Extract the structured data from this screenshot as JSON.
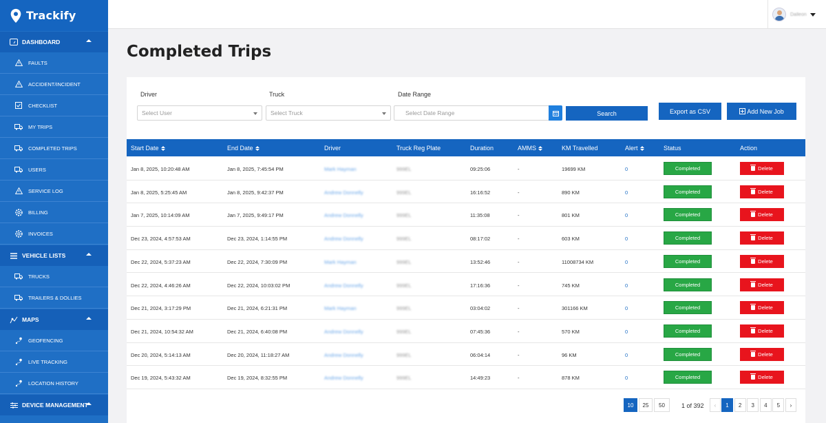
{
  "app": {
    "name": "Trackify"
  },
  "user": {
    "name": "Dalleon"
  },
  "page": {
    "title": "Completed Trips"
  },
  "sidebar": {
    "dashboard": {
      "label": "DASHBOARD",
      "items": [
        {
          "label": "FAULTS",
          "icon": "warning-icon"
        },
        {
          "label": "ACCIDENT/INCIDENT",
          "icon": "warning-icon"
        },
        {
          "label": "CHECKLIST",
          "icon": "checkbox-icon"
        },
        {
          "label": "MY TRIPS",
          "icon": "truck-icon"
        },
        {
          "label": "COMPLETED TRIPS",
          "icon": "truck-icon"
        },
        {
          "label": "USERS",
          "icon": "truck-icon"
        },
        {
          "label": "SERVICE LOG",
          "icon": "warning-icon"
        },
        {
          "label": "BILLING",
          "icon": "gear-icon"
        },
        {
          "label": "INVOICES",
          "icon": "gear-icon"
        }
      ]
    },
    "vehicle_lists": {
      "label": "VEHICLE LISTS",
      "items": [
        {
          "label": "TRUCKS",
          "icon": "truck-icon"
        },
        {
          "label": "TRAILERS & DOLLIES",
          "icon": "truck-icon"
        }
      ]
    },
    "maps": {
      "label": "MAPS",
      "items": [
        {
          "label": "GEOFENCING",
          "icon": "route-icon"
        },
        {
          "label": "LIVE TRACKING",
          "icon": "route-icon"
        },
        {
          "label": "LOCATION HISTORY",
          "icon": "route-icon"
        }
      ]
    },
    "device_management": {
      "label": "DEVICE MANAGEMENT"
    }
  },
  "filters": {
    "driver_label": "Driver",
    "driver_placeholder": "Select User",
    "truck_label": "Truck",
    "truck_placeholder": "Select Truck",
    "date_label": "Date Range",
    "date_placeholder": "Select Date Range",
    "search": "Search",
    "export": "Export as CSV",
    "add_job": "Add New Job"
  },
  "table": {
    "headers": [
      "Start Date",
      "End Date",
      "Driver",
      "Truck Reg Plate",
      "Duration",
      "AMMS",
      "KM Travelled",
      "Alert",
      "Status",
      "Action"
    ],
    "rows": [
      {
        "start": "Jan 8, 2025, 10:20:48 AM",
        "end": "Jan 8, 2025, 7:45:54 PM",
        "driver": "Mark Hayman",
        "plate": "999EL",
        "duration": "09:25:06",
        "amms": "-",
        "km": "19699 KM",
        "alert": "0",
        "status": "Completed",
        "action": "Delete"
      },
      {
        "start": "Jan 8, 2025, 5:25:45 AM",
        "end": "Jan 8, 2025, 9:42:37 PM",
        "driver": "Andrew Donnelly",
        "plate": "999EL",
        "duration": "16:16:52",
        "amms": "-",
        "km": "890 KM",
        "alert": "0",
        "status": "Completed",
        "action": "Delete"
      },
      {
        "start": "Jan 7, 2025, 10:14:09 AM",
        "end": "Jan 7, 2025, 9:49:17 PM",
        "driver": "Andrew Donnelly",
        "plate": "999EL",
        "duration": "11:35:08",
        "amms": "-",
        "km": "801 KM",
        "alert": "0",
        "status": "Completed",
        "action": "Delete"
      },
      {
        "start": "Dec 23, 2024, 4:57:53 AM",
        "end": "Dec 23, 2024, 1:14:55 PM",
        "driver": "Andrew Donnelly",
        "plate": "999EL",
        "duration": "08:17:02",
        "amms": "-",
        "km": "603 KM",
        "alert": "0",
        "status": "Completed",
        "action": "Delete"
      },
      {
        "start": "Dec 22, 2024, 5:37:23 AM",
        "end": "Dec 22, 2024, 7:30:09 PM",
        "driver": "Mark Hayman",
        "plate": "999EL",
        "duration": "13:52:46",
        "amms": "-",
        "km": "11008734 KM",
        "alert": "0",
        "status": "Completed",
        "action": "Delete"
      },
      {
        "start": "Dec 22, 2024, 4:46:26 AM",
        "end": "Dec 22, 2024, 10:03:02 PM",
        "driver": "Andrew Donnelly",
        "plate": "999EL",
        "duration": "17:16:36",
        "amms": "-",
        "km": "745 KM",
        "alert": "0",
        "status": "Completed",
        "action": "Delete"
      },
      {
        "start": "Dec 21, 2024, 3:17:29 PM",
        "end": "Dec 21, 2024, 6:21:31 PM",
        "driver": "Mark Hayman",
        "plate": "999EL",
        "duration": "03:04:02",
        "amms": "-",
        "km": "301166 KM",
        "alert": "0",
        "status": "Completed",
        "action": "Delete"
      },
      {
        "start": "Dec 21, 2024, 10:54:32 AM",
        "end": "Dec 21, 2024, 6:40:08 PM",
        "driver": "Andrew Donnelly",
        "plate": "999EL",
        "duration": "07:45:36",
        "amms": "-",
        "km": "570 KM",
        "alert": "0",
        "status": "Completed",
        "action": "Delete"
      },
      {
        "start": "Dec 20, 2024, 5:14:13 AM",
        "end": "Dec 20, 2024, 11:18:27 AM",
        "driver": "Andrew Donnelly",
        "plate": "999EL",
        "duration": "06:04:14",
        "amms": "-",
        "km": "96 KM",
        "alert": "0",
        "status": "Completed",
        "action": "Delete"
      },
      {
        "start": "Dec 19, 2024, 5:43:32 AM",
        "end": "Dec 19, 2024, 8:32:55 PM",
        "driver": "Andrew Donnelly",
        "plate": "999EL",
        "duration": "14:49:23",
        "amms": "-",
        "km": "878 KM",
        "alert": "0",
        "status": "Completed",
        "action": "Delete"
      }
    ]
  },
  "pagination": {
    "sizes": [
      "10",
      "25",
      "50"
    ],
    "info": "1 of 392",
    "prev": "‹",
    "next": "›",
    "pages": [
      "1",
      "2",
      "3",
      "4",
      "5"
    ]
  },
  "colors": {
    "primary": "#1565c0",
    "success": "#28a745",
    "danger": "#e8141d"
  }
}
